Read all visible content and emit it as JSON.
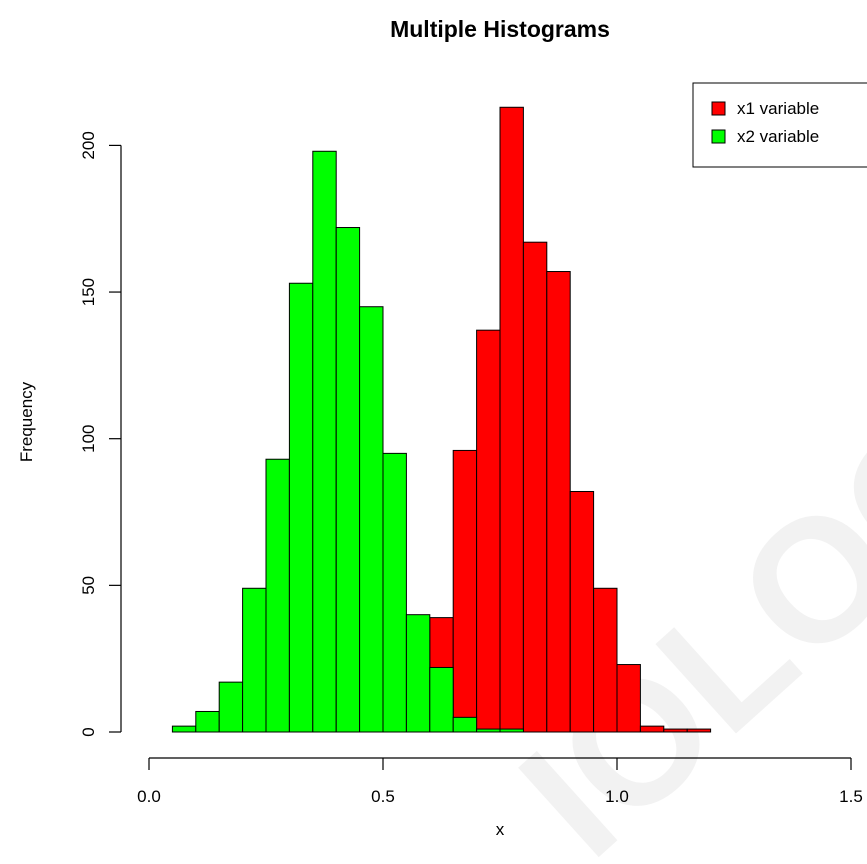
{
  "chart_data": {
    "type": "bar",
    "title": "Multiple Histograms",
    "xlabel": "x",
    "ylabel": "Frequency",
    "xlim": [
      0,
      1.5
    ],
    "ylim": [
      0,
      220
    ],
    "x_ticks": [
      "0.0",
      "0.5",
      "1.0",
      "1.5"
    ],
    "y_ticks": [
      "0",
      "50",
      "100",
      "150",
      "200"
    ],
    "bin_width": 0.05,
    "grid": false,
    "legend_position": "top-right",
    "series": [
      {
        "name": "x1 variable",
        "color": "#ff0000",
        "bin_starts": [
          0.55,
          0.6,
          0.65,
          0.7,
          0.75,
          0.8,
          0.85,
          0.9,
          0.95,
          1.0,
          1.05,
          1.1,
          1.15
        ],
        "values": [
          22,
          39,
          96,
          137,
          213,
          167,
          157,
          82,
          49,
          23,
          2,
          1,
          1
        ]
      },
      {
        "name": "x2 variable",
        "color": "#00ff00",
        "bin_starts": [
          0.05,
          0.1,
          0.15,
          0.2,
          0.25,
          0.3,
          0.35,
          0.4,
          0.45,
          0.5,
          0.55,
          0.6,
          0.65,
          0.7,
          0.75
        ],
        "values": [
          2,
          7,
          17,
          49,
          93,
          153,
          198,
          172,
          145,
          95,
          40,
          22,
          5,
          1,
          1
        ]
      }
    ]
  },
  "watermark": "IOLOGY"
}
